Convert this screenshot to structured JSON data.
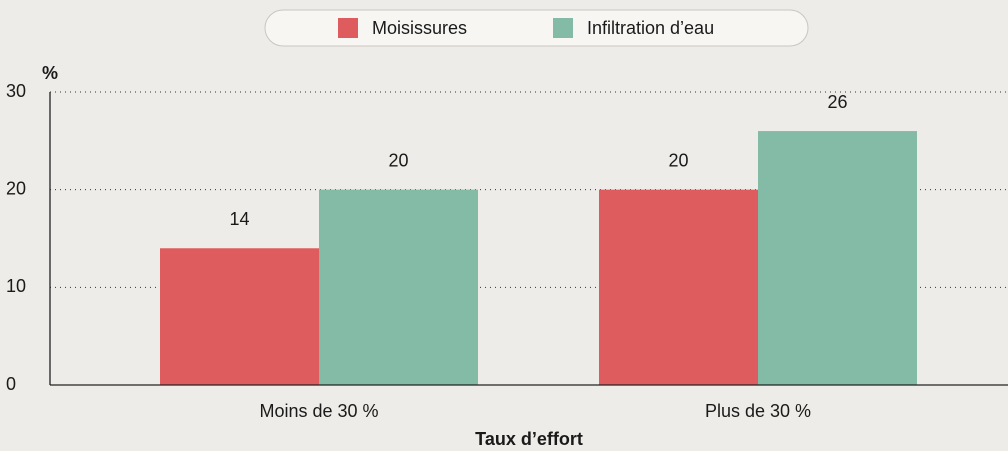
{
  "chart_data": {
    "type": "bar",
    "y_label": "%",
    "x_label": "Taux d’effort",
    "categories": [
      "Moins de 30 %",
      "Plus de 30 %"
    ],
    "series": [
      {
        "name": "Moisissures",
        "color": "#de5b5e",
        "values": [
          14,
          20
        ]
      },
      {
        "name": "Infiltration d’eau",
        "color": "#84bba6",
        "values": [
          20,
          26
        ]
      }
    ],
    "ylim": [
      0,
      30
    ],
    "yticks": [
      0,
      10,
      20,
      30
    ],
    "grid": true,
    "legend": "top"
  }
}
